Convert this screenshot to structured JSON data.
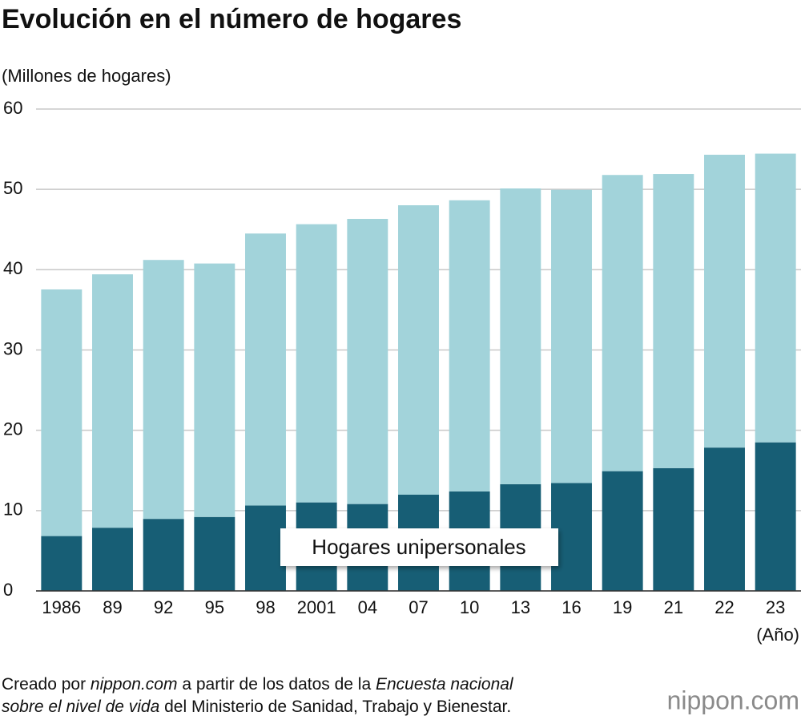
{
  "chart_data": {
    "type": "stacked_bar",
    "title": "Evolución en el número de hogares",
    "y_label": "(Millones de hogares)",
    "x_label": "(Año)",
    "categories": [
      "1986",
      "89",
      "92",
      "95",
      "98",
      "2001",
      "04",
      "07",
      "10",
      "13",
      "16",
      "19",
      "21",
      "22",
      "23"
    ],
    "series": [
      {
        "name": "Hogares unipersonales",
        "color": "#175e75",
        "values": [
          6.83,
          7.87,
          8.97,
          9.21,
          10.63,
          11.02,
          10.82,
          11.98,
          12.39,
          13.29,
          13.43,
          14.91,
          15.29,
          17.85,
          18.5
        ]
      },
      {
        "color": "#a2d3da",
        "values": [
          30.71,
          31.55,
          32.24,
          31.56,
          33.87,
          34.64,
          35.5,
          36.04,
          36.25,
          36.82,
          36.52,
          36.88,
          36.62,
          36.46,
          35.95
        ]
      }
    ],
    "ylim": [
      0,
      60
    ],
    "yticks": [
      0,
      10,
      20,
      30,
      40,
      50,
      60
    ],
    "grid": true,
    "source": [
      [
        {
          "text": "Creado por "
        },
        {
          "text": "nippon.com",
          "italic": true
        },
        {
          "text": " a partir de los datos de la "
        },
        {
          "text": "Encuesta nacional",
          "italic": true
        }
      ],
      [
        {
          "text": "sobre el nivel de vida",
          "italic": true
        },
        {
          "text": " del Ministerio de Sanidad, Trabajo y Bienestar."
        }
      ]
    ],
    "logo": "nippon.com"
  }
}
